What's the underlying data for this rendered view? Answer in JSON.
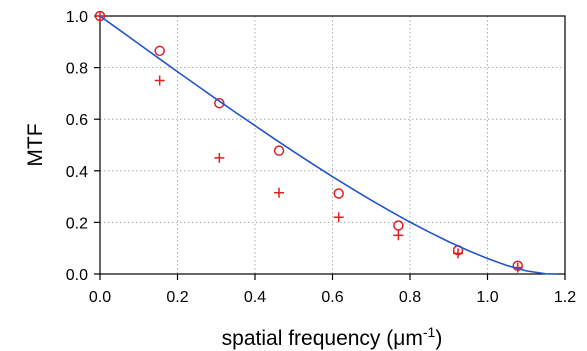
{
  "chart_data": {
    "type": "scatter",
    "xlabel": "spatial frequency (μm⁻¹)",
    "xlabel_main": "spatial frequency (",
    "xlabel_unit": "μm",
    "xlabel_exp": "-1",
    "xlabel_close": ")",
    "ylabel": "MTF",
    "xlim": [
      0.0,
      1.2
    ],
    "ylim": [
      0.0,
      1.0
    ],
    "xticks": [
      "0.0",
      "0.2",
      "0.4",
      "0.6",
      "0.8",
      "1.0",
      "1.2"
    ],
    "yticks": [
      "0.0",
      "0.2",
      "0.4",
      "0.6",
      "0.8",
      "1.0"
    ],
    "grid": true,
    "legend": "none",
    "series": [
      {
        "marker": "circle",
        "color": "#e02020",
        "x": [
          0.0,
          0.154,
          0.308,
          0.462,
          0.616,
          0.77,
          0.924,
          1.078
        ],
        "y": [
          1.0,
          0.865,
          0.662,
          0.478,
          0.312,
          0.188,
          0.092,
          0.032
        ]
      },
      {
        "marker": "plus",
        "color": "#e02020",
        "x": [
          0.0,
          0.154,
          0.308,
          0.462,
          0.616,
          0.77,
          0.924,
          1.078
        ],
        "y": [
          1.0,
          0.75,
          0.45,
          0.315,
          0.22,
          0.15,
          0.08,
          0.025
        ]
      },
      {
        "marker": "line",
        "color": "#2255cc",
        "x": [
          0.0,
          0.05,
          0.1,
          0.15,
          0.2,
          0.25,
          0.3,
          0.35,
          0.4,
          0.45,
          0.5,
          0.55,
          0.6,
          0.65,
          0.7,
          0.75,
          0.8,
          0.85,
          0.9,
          0.95,
          1.0,
          1.05,
          1.1,
          1.15,
          1.18
        ],
        "y": [
          1.0,
          0.946,
          0.892,
          0.838,
          0.784,
          0.731,
          0.678,
          0.626,
          0.575,
          0.524,
          0.474,
          0.425,
          0.377,
          0.331,
          0.286,
          0.243,
          0.201,
          0.162,
          0.125,
          0.091,
          0.06,
          0.033,
          0.012,
          0.001,
          0.0
        ]
      }
    ]
  }
}
